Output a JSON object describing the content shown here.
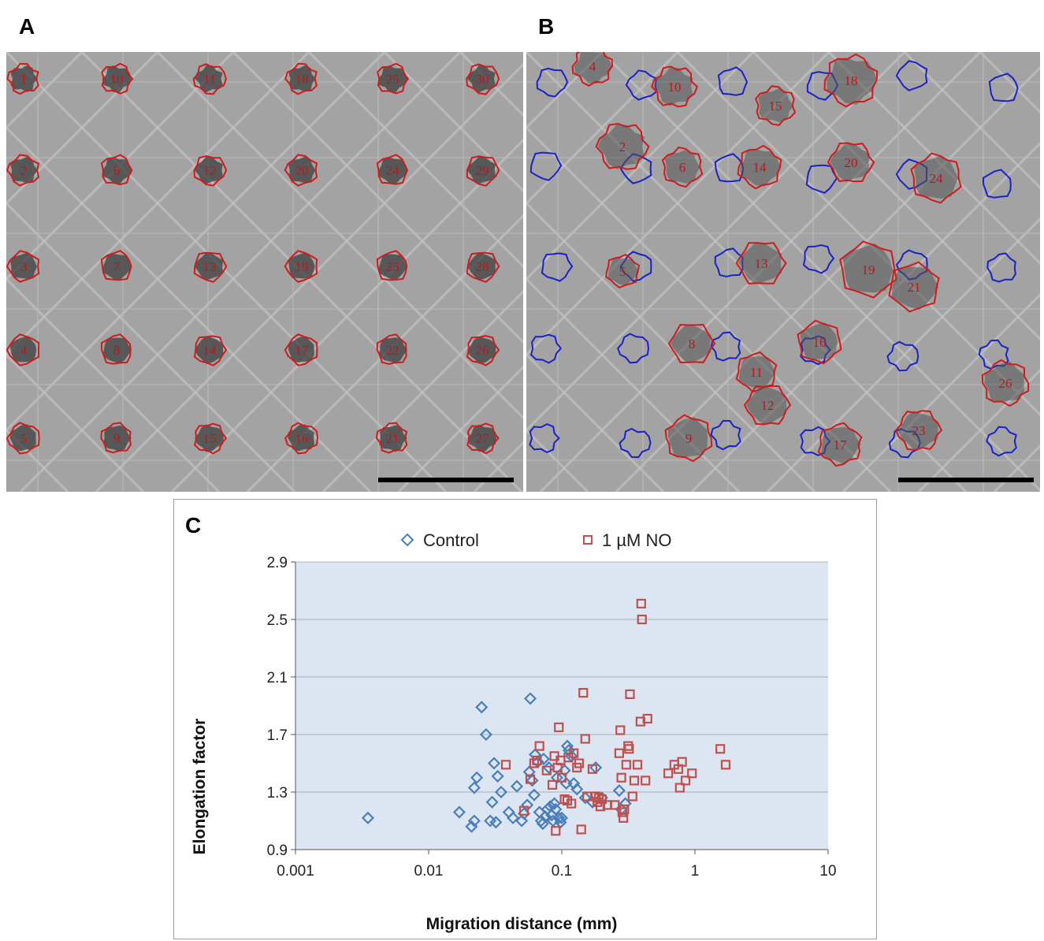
{
  "panels": {
    "a": {
      "letter": "A",
      "cells": [
        {
          "label": "1",
          "track": "top"
        },
        {
          "label": "10",
          "track": "top"
        },
        {
          "label": "11",
          "track": "top"
        },
        {
          "label": "18",
          "track": "top"
        },
        {
          "label": "25",
          "track": "top"
        },
        {
          "label": "30",
          "track": "top"
        },
        {
          "label": "2",
          "track": "top"
        },
        {
          "label": "6",
          "track": "top"
        },
        {
          "label": "12",
          "track": "top"
        },
        {
          "label": "20",
          "track": "top"
        },
        {
          "label": "24",
          "track": "top"
        },
        {
          "label": "29",
          "track": "top"
        },
        {
          "label": "3",
          "track": "top"
        },
        {
          "label": "7",
          "track": "top"
        },
        {
          "label": "13",
          "track": "top"
        },
        {
          "label": "19",
          "track": "top"
        },
        {
          "label": "23",
          "track": "top"
        },
        {
          "label": "28",
          "track": "top"
        },
        {
          "label": "4",
          "track": "top"
        },
        {
          "label": "8",
          "track": "top"
        },
        {
          "label": "14",
          "track": "top"
        },
        {
          "label": "17",
          "track": "top"
        },
        {
          "label": "22",
          "track": "top"
        },
        {
          "label": "26",
          "track": "top"
        },
        {
          "label": "5",
          "track": "top"
        },
        {
          "label": "9",
          "track": "top"
        },
        {
          "label": "15",
          "track": "top"
        },
        {
          "label": "16",
          "track": "top"
        },
        {
          "label": "21",
          "track": "top"
        },
        {
          "label": "27",
          "track": "top"
        }
      ]
    },
    "b": {
      "letter": "B",
      "cells": [
        {
          "label": "4"
        },
        {
          "label": "10"
        },
        {
          "label": "15"
        },
        {
          "label": "18"
        },
        {
          "label": "2"
        },
        {
          "label": "6"
        },
        {
          "label": "14"
        },
        {
          "label": "20"
        },
        {
          "label": "24"
        },
        {
          "label": "5"
        },
        {
          "label": "13"
        },
        {
          "label": "19"
        },
        {
          "label": "21"
        },
        {
          "label": "8"
        },
        {
          "label": "16"
        },
        {
          "label": "11"
        },
        {
          "label": "12"
        },
        {
          "label": "9"
        },
        {
          "label": "17"
        },
        {
          "label": "23"
        },
        {
          "label": "26"
        }
      ]
    }
  },
  "chart": {
    "letter": "C",
    "colors": {
      "control": "#4a7ebb",
      "no": "#c0504d",
      "plot_bg": "#dce6f2",
      "grid": "#ffffff"
    },
    "chart_data": {
      "type": "scatter",
      "xlabel": "Migration distance  (mm)",
      "ylabel": "Elongation factor",
      "x_scale": "log",
      "xlim": [
        0.001,
        10
      ],
      "ylim": [
        0.9,
        2.9
      ],
      "x_ticks": [
        "0.001",
        "0.01",
        "0.1",
        "1",
        "10"
      ],
      "y_ticks": [
        "0.9",
        "1.3",
        "1.7",
        "2.1",
        "2.5",
        "2.9"
      ],
      "grid": "horizontal",
      "legend": "top",
      "series": [
        {
          "name": "Control",
          "marker": "diamond",
          "points": [
            [
              0.0035,
              1.12
            ],
            [
              0.017,
              1.16
            ],
            [
              0.021,
              1.06
            ],
            [
              0.022,
              1.1
            ],
            [
              0.022,
              1.33
            ],
            [
              0.023,
              1.4
            ],
            [
              0.025,
              1.89
            ],
            [
              0.027,
              1.7
            ],
            [
              0.029,
              1.1
            ],
            [
              0.03,
              1.23
            ],
            [
              0.031,
              1.5
            ],
            [
              0.032,
              1.09
            ],
            [
              0.033,
              1.41
            ],
            [
              0.035,
              1.3
            ],
            [
              0.04,
              1.16
            ],
            [
              0.043,
              1.12
            ],
            [
              0.046,
              1.34
            ],
            [
              0.05,
              1.1
            ],
            [
              0.052,
              1.15
            ],
            [
              0.055,
              1.21
            ],
            [
              0.057,
              1.44
            ],
            [
              0.058,
              1.95
            ],
            [
              0.06,
              1.38
            ],
            [
              0.062,
              1.28
            ],
            [
              0.063,
              1.56
            ],
            [
              0.066,
              1.51
            ],
            [
              0.068,
              1.16
            ],
            [
              0.07,
              1.1
            ],
            [
              0.072,
              1.08
            ],
            [
              0.073,
              1.53
            ],
            [
              0.075,
              1.13
            ],
            [
              0.078,
              1.18
            ],
            [
              0.08,
              1.47
            ],
            [
              0.082,
              1.2
            ],
            [
              0.084,
              1.14
            ],
            [
              0.086,
              1.1
            ],
            [
              0.088,
              1.22
            ],
            [
              0.09,
              1.18
            ],
            [
              0.092,
              1.4
            ],
            [
              0.095,
              1.12
            ],
            [
              0.098,
              1.09
            ],
            [
              0.1,
              1.12
            ],
            [
              0.105,
              1.45
            ],
            [
              0.108,
              1.36
            ],
            [
              0.11,
              1.62
            ],
            [
              0.113,
              1.59
            ],
            [
              0.118,
              1.55
            ],
            [
              0.123,
              1.36
            ],
            [
              0.13,
              1.32
            ],
            [
              0.15,
              1.26
            ],
            [
              0.17,
              1.23
            ],
            [
              0.18,
              1.47
            ],
            [
              0.2,
              1.26
            ],
            [
              0.27,
              1.31
            ],
            [
              0.28,
              1.18
            ],
            [
              0.3,
              1.22
            ]
          ]
        },
        {
          "name": "1 µM NO",
          "marker": "square",
          "points": [
            [
              0.038,
              1.49
            ],
            [
              0.052,
              1.17
            ],
            [
              0.058,
              1.39
            ],
            [
              0.062,
              1.5
            ],
            [
              0.065,
              1.52
            ],
            [
              0.068,
              1.62
            ],
            [
              0.077,
              1.45
            ],
            [
              0.085,
              1.35
            ],
            [
              0.088,
              1.55
            ],
            [
              0.09,
              1.03
            ],
            [
              0.093,
              1.47
            ],
            [
              0.095,
              1.75
            ],
            [
              0.098,
              1.52
            ],
            [
              0.1,
              1.4
            ],
            [
              0.105,
              1.25
            ],
            [
              0.11,
              1.24
            ],
            [
              0.112,
              1.54
            ],
            [
              0.118,
              1.22
            ],
            [
              0.123,
              1.57
            ],
            [
              0.13,
              1.47
            ],
            [
              0.135,
              1.5
            ],
            [
              0.14,
              1.04
            ],
            [
              0.145,
              1.99
            ],
            [
              0.15,
              1.67
            ],
            [
              0.155,
              1.27
            ],
            [
              0.17,
              1.46
            ],
            [
              0.18,
              1.27
            ],
            [
              0.185,
              1.23
            ],
            [
              0.19,
              1.26
            ],
            [
              0.195,
              1.2
            ],
            [
              0.2,
              1.25
            ],
            [
              0.22,
              1.21
            ],
            [
              0.25,
              1.21
            ],
            [
              0.27,
              1.57
            ],
            [
              0.275,
              1.73
            ],
            [
              0.28,
              1.4
            ],
            [
              0.285,
              1.16
            ],
            [
              0.29,
              1.12
            ],
            [
              0.295,
              1.18
            ],
            [
              0.305,
              1.49
            ],
            [
              0.315,
              1.62
            ],
            [
              0.32,
              1.6
            ],
            [
              0.325,
              1.98
            ],
            [
              0.34,
              1.27
            ],
            [
              0.35,
              1.38
            ],
            [
              0.37,
              1.49
            ],
            [
              0.39,
              1.79
            ],
            [
              0.395,
              2.61
            ],
            [
              0.4,
              2.5
            ],
            [
              0.425,
              1.38
            ],
            [
              0.44,
              1.81
            ],
            [
              0.63,
              1.43
            ],
            [
              0.7,
              1.49
            ],
            [
              0.75,
              1.46
            ],
            [
              0.77,
              1.33
            ],
            [
              0.8,
              1.51
            ],
            [
              0.85,
              1.38
            ],
            [
              0.95,
              1.43
            ],
            [
              1.55,
              1.6
            ],
            [
              1.7,
              1.49
            ]
          ]
        }
      ]
    }
  }
}
